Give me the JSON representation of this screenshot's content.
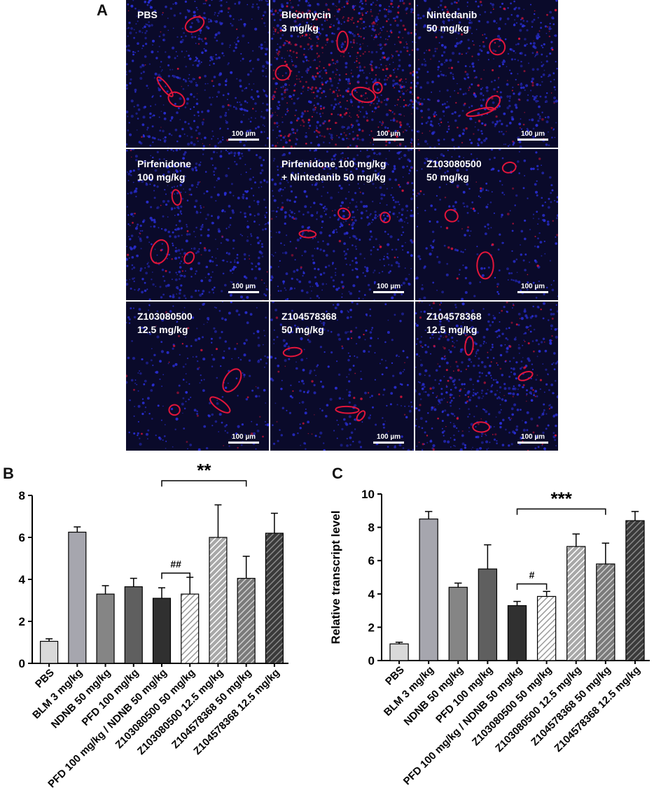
{
  "panels": {
    "a": "A",
    "b": "B",
    "c": "C"
  },
  "micrographs": [
    {
      "label": "PBS",
      "scale": "100 µm",
      "tone": "blue"
    },
    {
      "label": "Bleomycin\n3 mg/kg",
      "scale": "100 µm",
      "tone": "red"
    },
    {
      "label": "Nintedanib\n50 mg/kg",
      "scale": "100 µm",
      "tone": "mixed"
    },
    {
      "label": "Pirfenidone\n100 mg/kg",
      "scale": "100 µm",
      "tone": "blue"
    },
    {
      "label": "Pirfenidone 100 mg/kg\n+ Nintedanib 50 mg/kg",
      "scale": "100 µm",
      "tone": "blue"
    },
    {
      "label": "Z103080500\n50 mg/kg",
      "scale": "100 µm",
      "tone": "dark"
    },
    {
      "label": "Z103080500\n12.5 mg/kg",
      "scale": "100 µm",
      "tone": "dark"
    },
    {
      "label": "Z104578368\n50 mg/kg",
      "scale": "100 µm",
      "tone": "dark"
    },
    {
      "label": "Z104578368\n12.5 mg/kg",
      "scale": "100 µm",
      "tone": "mixed"
    }
  ],
  "colors": {
    "blue_stain": "#2a2fd8",
    "red_stain": "#e3153a",
    "tissue_bg": "#0a0a2a"
  },
  "chart_data": [
    {
      "type": "bar",
      "panel": "B",
      "categories": [
        "PBS",
        "BLM 3 mg/kg",
        "NDNB 50 mg/kg",
        "PFD 100 mg/kg",
        "PFD 100 mg/kg / NDNB 50 mg/kg",
        "Z103080500 50 mg/kg",
        "Z103080500 12.5 mg/kg",
        "Z104578368 50 mg/kg",
        "Z104578368 12.5 mg/kg"
      ],
      "values": [
        1.05,
        6.25,
        3.3,
        3.65,
        3.1,
        3.3,
        6.0,
        4.05,
        6.2
      ],
      "errors": [
        0.12,
        0.25,
        0.4,
        0.4,
        0.5,
        0.8,
        1.55,
        1.05,
        0.95
      ],
      "fills": [
        "#d9d9d9",
        "#a6a6ae",
        "#858585",
        "#5f5f5f",
        "#303030",
        "hatch-light",
        "hatch-mid",
        "hatch-darkmid",
        "hatch-dark"
      ],
      "ylabel": "",
      "ylim": [
        0,
        8
      ],
      "yticks": [
        "0",
        "2",
        "4",
        "6",
        "8"
      ],
      "annotations": [
        {
          "text": "**",
          "from": 4,
          "to": 7,
          "level": 8.7
        },
        {
          "text": "##",
          "from": 4,
          "to": 5,
          "level": 4.3
        }
      ]
    },
    {
      "type": "bar",
      "panel": "C",
      "categories": [
        "PBS",
        "BLM 3 mg/kg",
        "NDNB 50 mg/kg",
        "PFD 100 mg/kg",
        "PFD 100 mg/kg / NDNB 50 mg/kg",
        "Z103080500 50 mg/kg",
        "Z103080500 12.5 mg/kg",
        "Z104578368 50 mg/kg",
        "Z104578368 12.5 mg/kg"
      ],
      "values": [
        1.0,
        8.5,
        4.4,
        5.5,
        3.3,
        3.85,
        6.85,
        5.8,
        8.4
      ],
      "errors": [
        0.1,
        0.45,
        0.25,
        1.45,
        0.25,
        0.3,
        0.75,
        1.25,
        0.55
      ],
      "fills": [
        "#d9d9d9",
        "#a6a6ae",
        "#858585",
        "#5f5f5f",
        "#303030",
        "hatch-light",
        "hatch-mid",
        "hatch-darkmid",
        "hatch-dark"
      ],
      "ylabel": "Relative transcript level",
      "ylim": [
        0,
        10
      ],
      "yticks": [
        "0",
        "2",
        "4",
        "6",
        "8",
        "10"
      ],
      "annotations": [
        {
          "text": "***",
          "from": 4,
          "to": 7,
          "level": 9.1
        },
        {
          "text": "#",
          "from": 4,
          "to": 5,
          "level": 4.6
        }
      ]
    }
  ]
}
